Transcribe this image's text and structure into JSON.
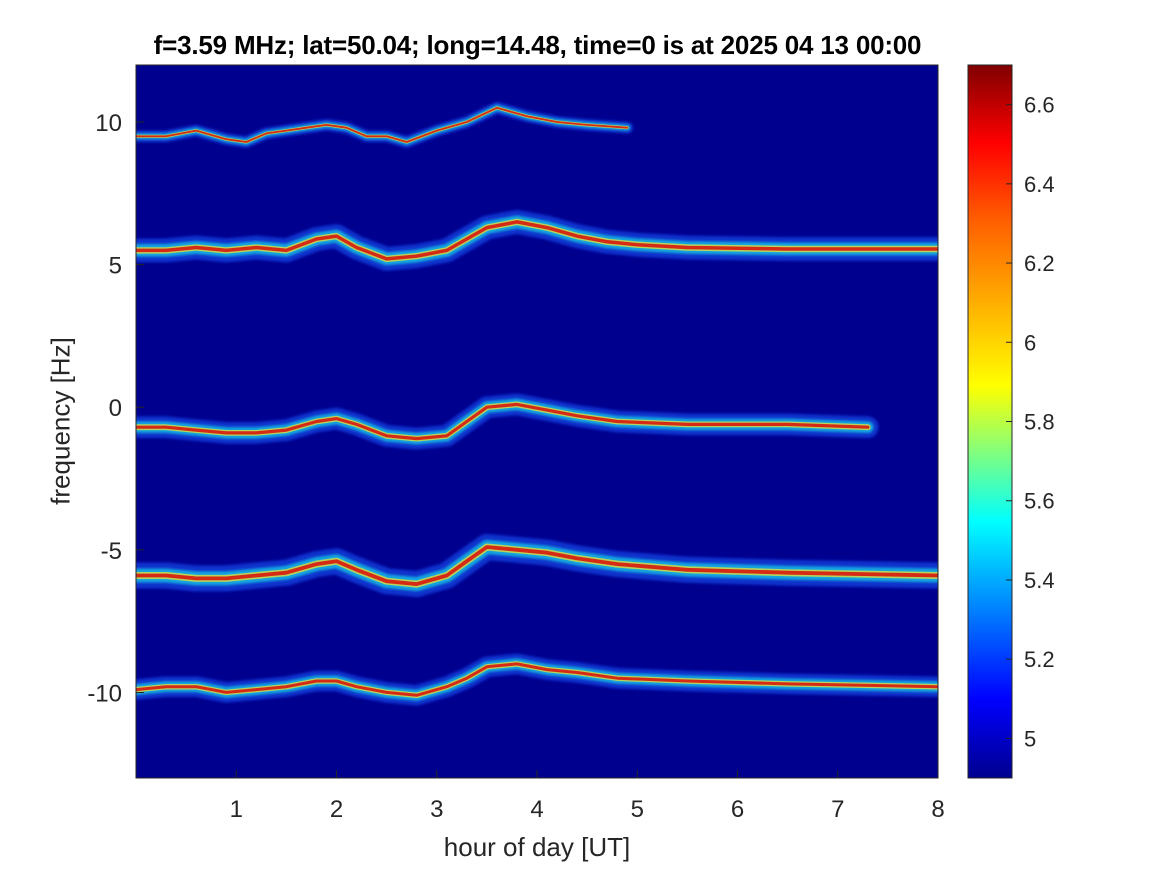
{
  "chart_data": {
    "type": "heatmap",
    "title": "f=3.59 MHz;  lat=50.04; long=14.48, time=0 is at 2025 04 13 00:00",
    "xlabel": "hour of day [UT]",
    "ylabel": "frequency [Hz]",
    "xlim": [
      0,
      8
    ],
    "ylim": [
      -13,
      12
    ],
    "xticks": [
      1,
      2,
      3,
      4,
      5,
      6,
      7,
      8
    ],
    "yticks": [
      -10,
      -5,
      0,
      5,
      10
    ],
    "background_color": "#00008f",
    "colormap": "jet",
    "colorbar": {
      "range": [
        4.9,
        6.7
      ],
      "ticks": [
        5,
        5.2,
        5.4,
        5.6,
        5.8,
        6,
        6.2,
        6.4,
        6.6
      ],
      "tick_labels": [
        "5",
        "5.2",
        "5.4",
        "5.6",
        "5.8",
        "6",
        "6.2",
        "6.4",
        "6.6"
      ]
    },
    "traces": [
      {
        "label": "+10 Hz",
        "intensity": 0.35,
        "points": [
          [
            0,
            9.5
          ],
          [
            0.3,
            9.5
          ],
          [
            0.6,
            9.7
          ],
          [
            0.9,
            9.4
          ],
          [
            1.1,
            9.3
          ],
          [
            1.3,
            9.6
          ],
          [
            1.5,
            9.7
          ],
          [
            1.7,
            9.8
          ],
          [
            1.9,
            9.9
          ],
          [
            2.1,
            9.8
          ],
          [
            2.3,
            9.5
          ],
          [
            2.5,
            9.5
          ],
          [
            2.7,
            9.3
          ],
          [
            3.0,
            9.7
          ],
          [
            3.3,
            10.0
          ],
          [
            3.6,
            10.5
          ],
          [
            3.9,
            10.2
          ],
          [
            4.2,
            10.0
          ],
          [
            4.5,
            9.9
          ],
          [
            4.9,
            9.8
          ]
        ]
      },
      {
        "label": "+5 Hz",
        "intensity": 0.9,
        "points": [
          [
            0,
            5.5
          ],
          [
            0.3,
            5.5
          ],
          [
            0.6,
            5.6
          ],
          [
            0.9,
            5.5
          ],
          [
            1.2,
            5.6
          ],
          [
            1.5,
            5.5
          ],
          [
            1.8,
            5.9
          ],
          [
            2.0,
            6.0
          ],
          [
            2.2,
            5.6
          ],
          [
            2.5,
            5.2
          ],
          [
            2.8,
            5.3
          ],
          [
            3.1,
            5.5
          ],
          [
            3.3,
            5.9
          ],
          [
            3.5,
            6.3
          ],
          [
            3.8,
            6.5
          ],
          [
            4.1,
            6.3
          ],
          [
            4.4,
            6.0
          ],
          [
            4.7,
            5.8
          ],
          [
            5.0,
            5.7
          ],
          [
            5.5,
            5.6
          ],
          [
            6.5,
            5.55
          ],
          [
            8,
            5.55
          ]
        ]
      },
      {
        "label": "0 Hz",
        "intensity": 0.8,
        "points": [
          [
            0,
            -0.7
          ],
          [
            0.3,
            -0.7
          ],
          [
            0.6,
            -0.8
          ],
          [
            0.9,
            -0.9
          ],
          [
            1.2,
            -0.9
          ],
          [
            1.5,
            -0.8
          ],
          [
            1.8,
            -0.5
          ],
          [
            2.0,
            -0.4
          ],
          [
            2.2,
            -0.6
          ],
          [
            2.5,
            -1.0
          ],
          [
            2.8,
            -1.1
          ],
          [
            3.1,
            -1.0
          ],
          [
            3.3,
            -0.5
          ],
          [
            3.5,
            0.0
          ],
          [
            3.8,
            0.1
          ],
          [
            4.1,
            -0.1
          ],
          [
            4.4,
            -0.3
          ],
          [
            4.8,
            -0.5
          ],
          [
            5.5,
            -0.6
          ],
          [
            6.5,
            -0.6
          ],
          [
            7.3,
            -0.7
          ]
        ]
      },
      {
        "label": "-5 Hz",
        "intensity": 1.0,
        "points": [
          [
            0,
            -5.9
          ],
          [
            0.3,
            -5.9
          ],
          [
            0.6,
            -6.0
          ],
          [
            0.9,
            -6.0
          ],
          [
            1.2,
            -5.9
          ],
          [
            1.5,
            -5.8
          ],
          [
            1.8,
            -5.5
          ],
          [
            2.0,
            -5.4
          ],
          [
            2.2,
            -5.7
          ],
          [
            2.5,
            -6.1
          ],
          [
            2.8,
            -6.2
          ],
          [
            3.1,
            -5.9
          ],
          [
            3.3,
            -5.4
          ],
          [
            3.5,
            -4.9
          ],
          [
            3.8,
            -5.0
          ],
          [
            4.1,
            -5.1
          ],
          [
            4.4,
            -5.3
          ],
          [
            4.8,
            -5.5
          ],
          [
            5.5,
            -5.7
          ],
          [
            6.5,
            -5.8
          ],
          [
            8,
            -5.9
          ]
        ]
      },
      {
        "label": "-10 Hz",
        "intensity": 0.75,
        "points": [
          [
            0,
            -9.9
          ],
          [
            0.3,
            -9.8
          ],
          [
            0.6,
            -9.8
          ],
          [
            0.9,
            -10.0
          ],
          [
            1.2,
            -9.9
          ],
          [
            1.5,
            -9.8
          ],
          [
            1.8,
            -9.6
          ],
          [
            2.0,
            -9.6
          ],
          [
            2.2,
            -9.8
          ],
          [
            2.5,
            -10.0
          ],
          [
            2.8,
            -10.1
          ],
          [
            3.1,
            -9.8
          ],
          [
            3.3,
            -9.5
          ],
          [
            3.5,
            -9.1
          ],
          [
            3.8,
            -9.0
          ],
          [
            4.1,
            -9.2
          ],
          [
            4.4,
            -9.3
          ],
          [
            4.8,
            -9.5
          ],
          [
            5.5,
            -9.6
          ],
          [
            6.5,
            -9.7
          ],
          [
            8,
            -9.8
          ]
        ]
      }
    ]
  }
}
